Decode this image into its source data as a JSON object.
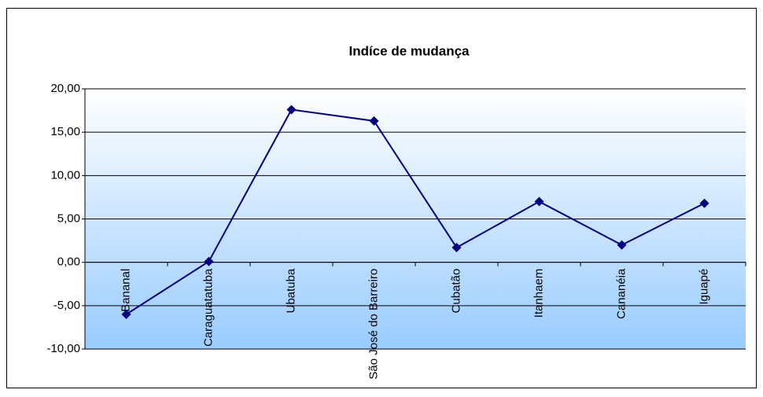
{
  "chart_data": {
    "type": "line",
    "title": "Indíce de mudança",
    "categories": [
      "Bananal",
      "Caraguatatuba",
      "Ubatuba",
      "São José do Barreiro",
      "Cubatão",
      "Itanhaem",
      "Cananéia",
      "Iguapé"
    ],
    "series": [
      {
        "name": "Indíce de mudança",
        "color": "#000080",
        "values": [
          -6.0,
          0.1,
          17.6,
          16.3,
          1.7,
          7.0,
          2.0,
          6.8
        ]
      }
    ],
    "ylim": [
      -10,
      20
    ],
    "yticks": [
      {
        "value": -10,
        "label": "-10,00"
      },
      {
        "value": -5,
        "label": "-5,00"
      },
      {
        "value": 0,
        "label": "0,00"
      },
      {
        "value": 5,
        "label": "5,00"
      },
      {
        "value": 10,
        "label": "10,00"
      },
      {
        "value": 15,
        "label": "15,00"
      },
      {
        "value": 20,
        "label": "20,00"
      }
    ],
    "grid": true
  }
}
